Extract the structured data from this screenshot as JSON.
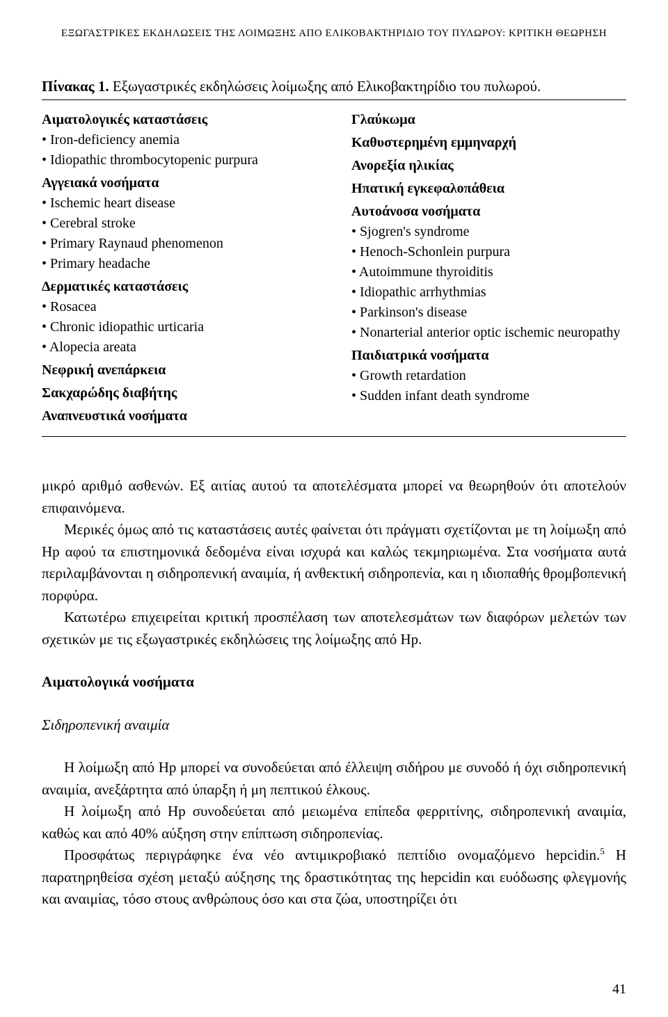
{
  "running_head": "ΕΞΩΓΑΣΤΡΙΚΕΣ ΕΚΔΗΛΩΣΕΙΣ ΤΗΣ ΛΟΙΜΩΞΗΣ ΑΠΟ ΕΛΙΚΟΒΑΚΤΗΡΙΔΙΟ ΤΟΥ ΠΥΛΩΡΟΥ: ΚΡΙΤΙΚΗ ΘΕΩΡΗΣΗ",
  "table": {
    "caption_label": "Πίνακας 1.",
    "caption_text": " Εξωγαστρικές εκδηλώσεις λοίμωξης από Ελικοβακτηρίδιο του πυλωρού.",
    "left": {
      "g1_head": "Αιματολογικές καταστάσεις",
      "g1_items": [
        "Iron-deficiency anemia",
        "Idiopathic thrombocytopenic purpura"
      ],
      "g2_head": "Αγγειακά νοσήματα",
      "g2_items": [
        "Ischemic heart disease",
        "Cerebral stroke",
        "Primary Raynaud phenomenon",
        "Primary headache"
      ],
      "g3_head": "Δερματικές καταστάσεις",
      "g3_items": [
        "Rosacea",
        "Chronic idiopathic urticaria",
        "Alopecia areata"
      ],
      "g4_head": "Νεφρική ανεπάρκεια",
      "g5_head": "Σακχαρώδης διαβήτης",
      "g6_head": "Αναπνευστικά νοσήματα"
    },
    "right": {
      "r1": "Γλαύκωμα",
      "r2": "Καθυστερημένη εμμηναρχή",
      "r3": "Ανορεξία ηλικίας",
      "r4": "Ηπατική εγκεφαλοπάθεια",
      "r5_head": "Αυτοάνοσα νοσήματα",
      "r5_items": [
        "Sjogren's syndrome",
        "Henoch-Schonlein purpura",
        "Autoimmune thyroiditis",
        "Idiopathic arrhythmias",
        "Parkinson's disease",
        "Nonarterial anterior optic ischemic neuropathy"
      ],
      "r6_head": "Παιδιατρικά νοσήματα",
      "r6_items": [
        "Growth retardation",
        "Sudden infant death syndrome"
      ]
    }
  },
  "body": {
    "p1a": "μικρό αριθμό ασθενών. Εξ αιτίας αυτού τα αποτελέσματα μπορεί να θεωρηθούν ότι αποτελούν επιφαινόμενα.",
    "p2": "Μερικές όμως από τις καταστάσεις αυτές φαίνεται ότι πράγματι σχετίζονται με τη λοίμωξη από Hp αφού τα επιστημονικά δεδομένα είναι ισχυρά και καλώς τεκμηριωμένα. Στα νοσήματα αυτά περιλαμβάνονται η σιδηροπενική αναιμία, ή ανθεκτική σιδηροπενία, και η ιδιοπαθής θρομβοπενική πορφύρα.",
    "p3": "Κατωτέρω επιχειρείται κριτική προσπέλαση των αποτελεσμάτων των διαφόρων μελετών των σχετικών με τις εξωγαστρικές εκδηλώσεις της λοίμωξης από Hp.",
    "sec_head": "Αιματολογικά νοσήματα",
    "subhead": "Σιδηροπενική αναιμία",
    "p4": "Η λοίμωξη από Hp μπορεί να συνοδεύεται από έλλειψη σιδήρου με συνοδό ή όχι σιδηροπενική αναιμία, ανεξάρτητα από ύπαρξη ή μη πεπτικού έλκους.",
    "p5": "Η λοίμωξη από Hp συνοδεύεται από μειωμένα επίπεδα φερριτίνης, σιδηροπενική αναιμία, καθώς και από 40% αύξηση στην επίπτωση σιδηροπενίας.",
    "p6a": "Προσφάτως περιγράφηκε ένα νέο αντιμικροβιακό πεπτίδιο ονομαζόμενο hepcidin.",
    "p6sup": "5",
    "p6b": " Η παρατηρηθείσα σχέση μεταξύ αύξησης της δραστικότητας της hepcidin και ευόδωσης φλεγμονής και αναιμίας, τόσο στους ανθρώπους όσο και στα ζώα, υποστηρίζει ότι"
  },
  "page_number": "41"
}
